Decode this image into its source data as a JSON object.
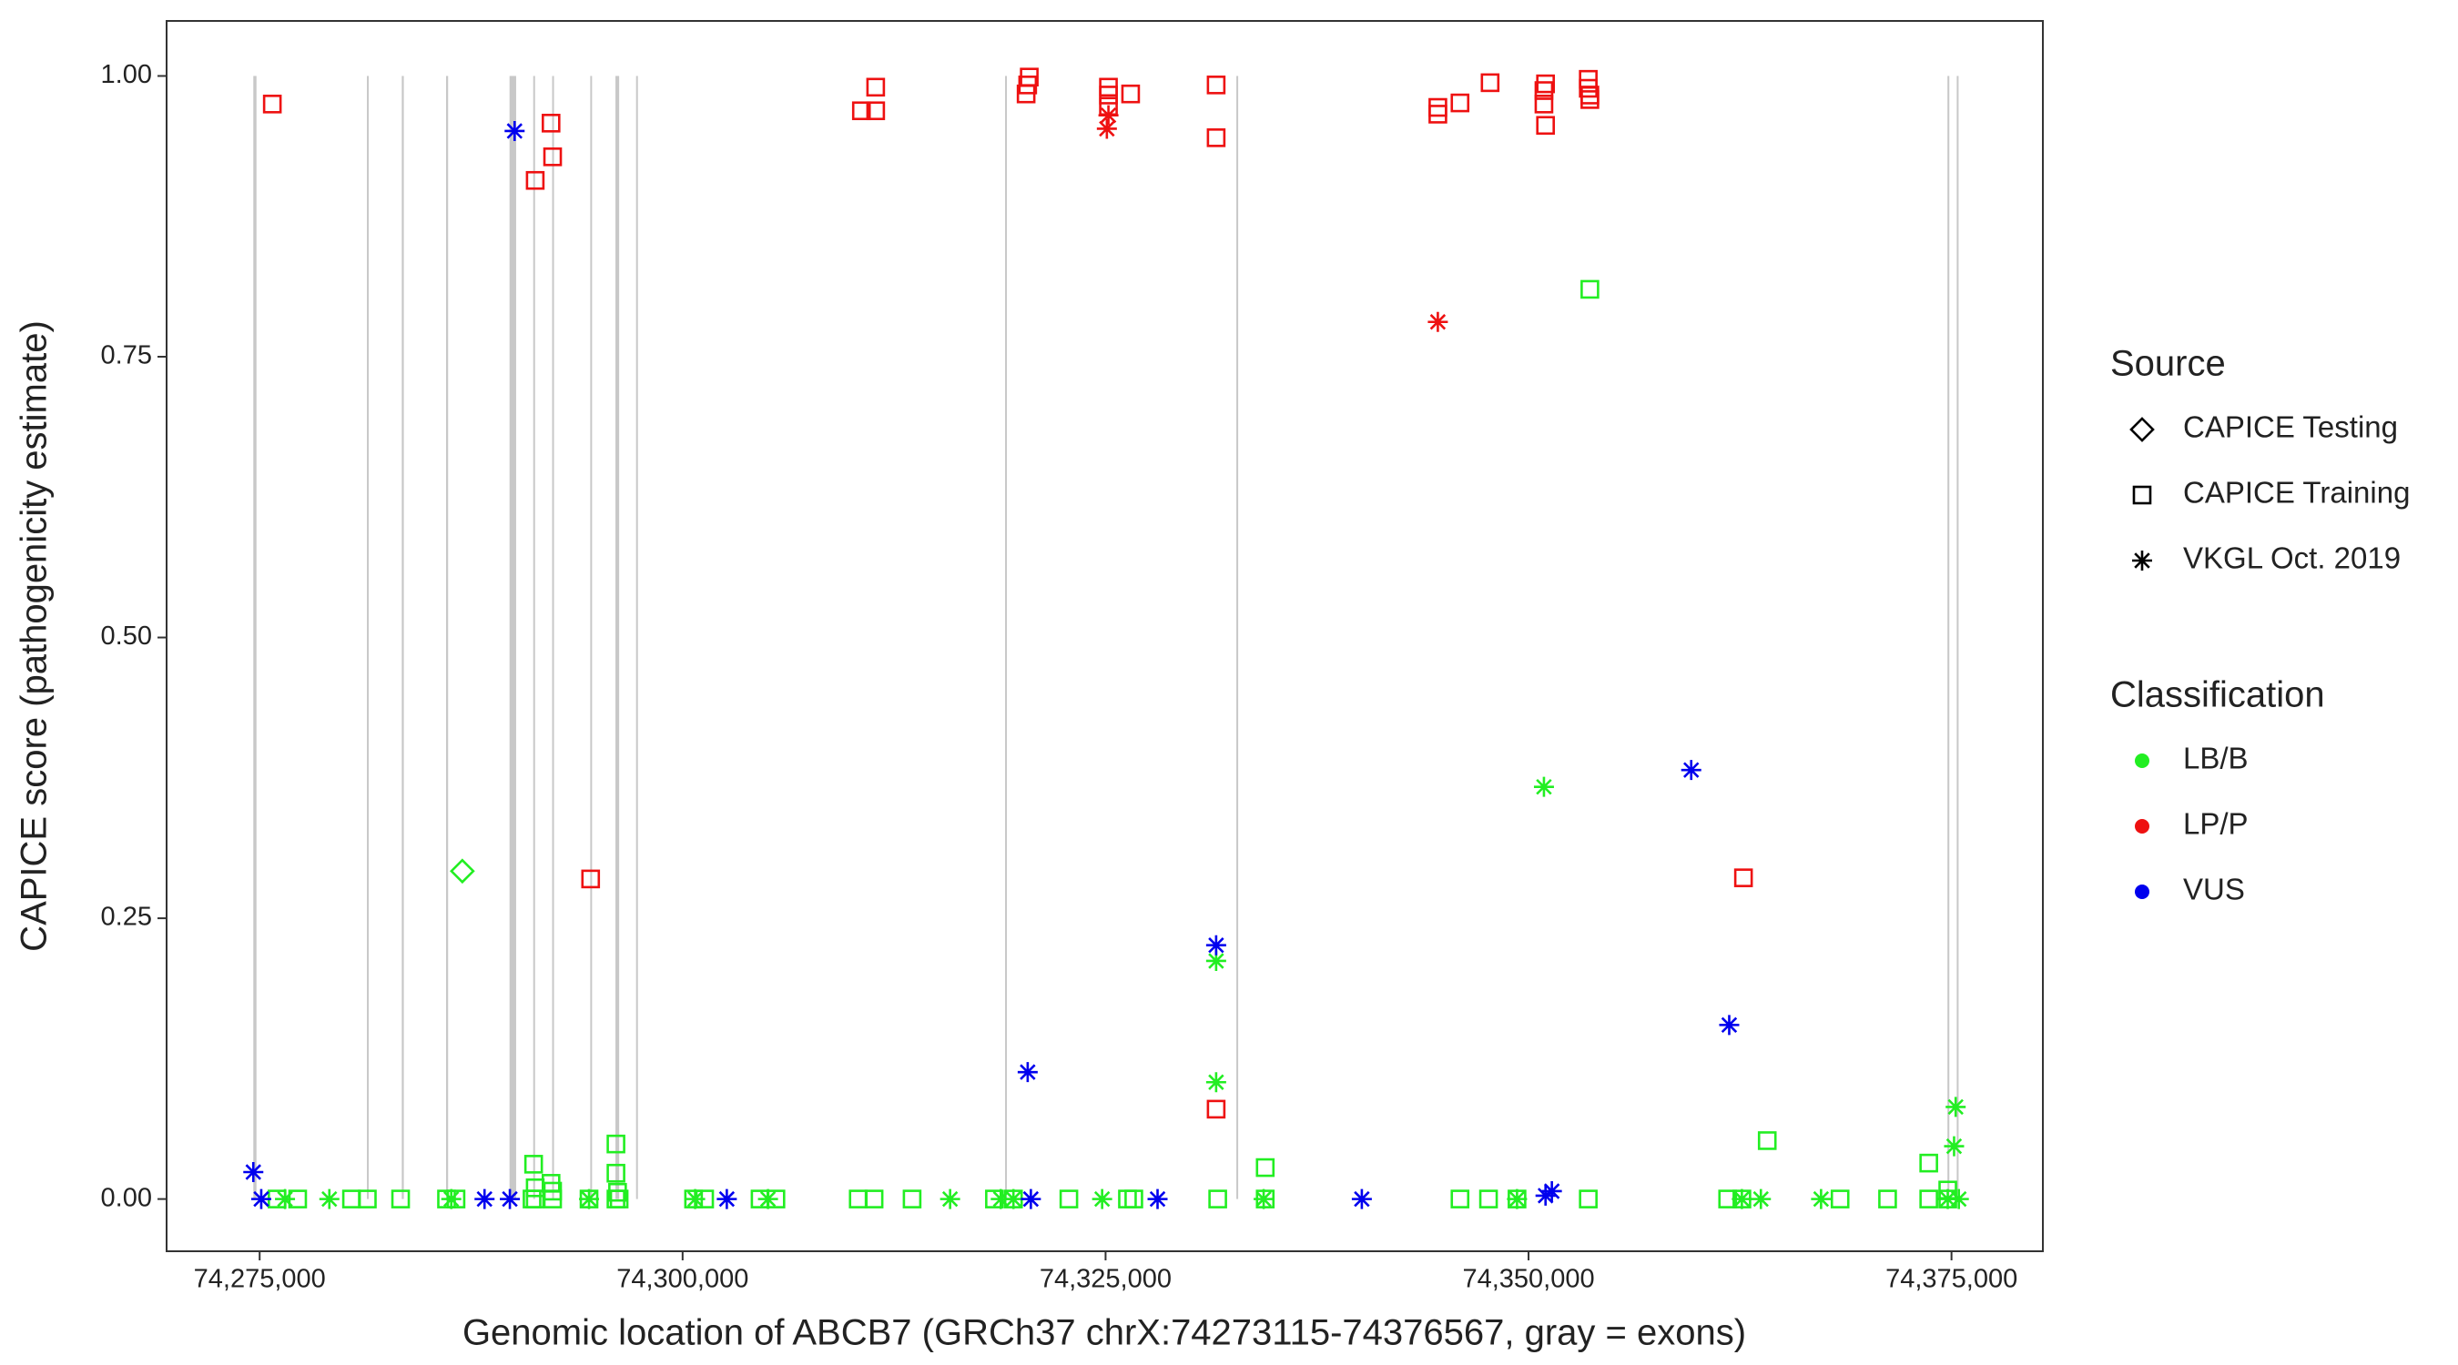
{
  "chart_data": {
    "type": "scatter",
    "xlabel": "Genomic location of ABCB7 (GRCh37 chrX:74273115-74376567, gray = exons)",
    "ylabel": "CAPICE score (pathogenicity estimate)",
    "xlim": [
      74269500,
      74380400
    ],
    "ylim": [
      -0.0465,
      1.049
    ],
    "xticks": [
      {
        "value": 74275000,
        "label": "74,275,000"
      },
      {
        "value": 74300000,
        "label": "74,300,000"
      },
      {
        "value": 74325000,
        "label": "74,325,000"
      },
      {
        "value": 74350000,
        "label": "74,350,000"
      },
      {
        "value": 74375000,
        "label": "74,375,000"
      }
    ],
    "yticks": [
      {
        "value": 0,
        "label": "0.00"
      },
      {
        "value": 0.25,
        "label": "0.25"
      },
      {
        "value": 0.5,
        "label": "0.50"
      },
      {
        "value": 0.75,
        "label": "0.75"
      },
      {
        "value": 1,
        "label": "1.00"
      }
    ],
    "exon_color": "#c8c8c8",
    "exons": [
      [
        74274626,
        74274813
      ],
      [
        74281340,
        74281390
      ],
      [
        74283400,
        74283520
      ],
      [
        74286020,
        74286140
      ],
      [
        74289770,
        74290160
      ],
      [
        74291170,
        74291220
      ],
      [
        74292290,
        74292340
      ],
      [
        74294540,
        74294590
      ],
      [
        74296030,
        74296250
      ],
      [
        74297250,
        74297300
      ],
      [
        74319060,
        74319110
      ],
      [
        74332730,
        74332780
      ],
      [
        74374760,
        74374870
      ],
      [
        74375310,
        74375360
      ]
    ],
    "legends": [
      {
        "title": "Source",
        "entries": [
          {
            "label": "CAPICE Testing",
            "shape": "diamond"
          },
          {
            "label": "CAPICE Training",
            "shape": "square"
          },
          {
            "label": "VKGL Oct. 2019",
            "shape": "star"
          }
        ]
      },
      {
        "title": "Classification",
        "entries": [
          {
            "label": "LB/B",
            "color": "#22ee22"
          },
          {
            "label": "LP/P",
            "color": "#ee1111"
          },
          {
            "label": "VUS",
            "color": "#0000ee"
          }
        ]
      }
    ],
    "series": [
      {
        "source": "CAPICE Training",
        "classification": "LB/B",
        "x": [
          74276030,
          74277247,
          74280429,
          74281365,
          74283331,
          74286045,
          74286607,
          74291100,
          74291287,
          74292316,
          74294469,
          74296060,
          74296248,
          74300647,
          74301302,
          74304578,
          74305514,
          74310381,
          74311317,
          74313564,
          74318431,
          74319554,
          74322830,
          74326293,
          74326668,
          74331628,
          74334436,
          74345949,
          74347634,
          74349319,
          74353531,
          74361768,
          74362610,
          74368413,
          74371221,
          74373655,
          74374778,
          74291193,
          74291287,
          74292223,
          74292316,
          74296060,
          74296060,
          74296154,
          74334436,
          74353624,
          74364108,
          74373655,
          74374778
        ],
        "values": [
          0,
          0,
          0,
          0,
          0,
          0,
          0,
          0,
          0,
          0,
          0,
          0,
          0,
          0,
          0,
          0,
          0,
          0,
          0,
          0,
          0,
          0,
          0,
          0,
          0,
          0,
          0,
          0,
          0,
          0,
          0,
          0,
          0,
          0,
          0,
          0,
          0,
          0.031,
          0.01,
          0.014,
          0.007,
          0.049,
          0.023,
          0.006,
          0.028,
          0.81,
          0.052,
          0.032,
          0.008
        ]
      },
      {
        "source": "VKGL Oct. 2019",
        "classification": "LB/B",
        "x": [
          74276498,
          74279119,
          74286326,
          74294469,
          74300740,
          74305046,
          74315810,
          74318805,
          74319554,
          74324796,
          74334343,
          74349319,
          74350910,
          74331535,
          74331535,
          74362610,
          74363733,
          74367290,
          74374778,
          74375152,
          74375246,
          74375433
        ],
        "values": [
          0,
          0,
          0,
          0,
          0,
          0,
          0,
          0,
          0,
          0,
          0,
          0,
          0.367,
          0.212,
          0.104,
          0,
          0,
          0,
          0,
          0.047,
          0.082,
          0
        ]
      },
      {
        "source": "CAPICE Testing",
        "classification": "LB/B",
        "x": [
          74286981
        ],
        "values": [
          0.292
        ]
      },
      {
        "source": "CAPICE Training",
        "classification": "LP/P",
        "x": [
          74275749,
          74291287,
          74292223,
          74292316,
          74294563,
          74310568,
          74311411,
          74311411,
          74320303,
          74320396,
          74320490,
          74325170,
          74325170,
          74325170,
          74326480,
          74331535,
          74331535,
          74331535,
          74344639,
          74344639,
          74345949,
          74347728,
          74350910,
          74351004,
          74350910,
          74351004,
          74353531,
          74353531,
          74353624,
          74353624,
          74362704
        ],
        "values": [
          0.975,
          0.907,
          0.958,
          0.928,
          0.285,
          0.969,
          0.99,
          0.969,
          0.984,
          0.992,
          0.999,
          0.99,
          0.983,
          0.973,
          0.984,
          0.992,
          0.945,
          0.08,
          0.966,
          0.972,
          0.976,
          0.994,
          0.987,
          0.993,
          0.975,
          0.956,
          0.997,
          0.989,
          0.983,
          0.979,
          0.286
        ]
      },
      {
        "source": "VKGL Oct. 2019",
        "classification": "LP/P",
        "x": [
          74325076,
          74325170,
          74344639
        ],
        "values": [
          0.953,
          0.965,
          0.781
        ]
      },
      {
        "source": "VKGL Oct. 2019",
        "classification": "VUS",
        "x": [
          74274626,
          74275094,
          74288292,
          74289789,
          74290070,
          74302612,
          74320396,
          74320584,
          74328072,
          74331535,
          74340146,
          74351004,
          74351378,
          74359615,
          74361861
        ],
        "values": [
          0.024,
          0,
          0,
          0,
          0.951,
          0,
          0.113,
          0,
          0,
          0.226,
          0,
          0.003,
          0.007,
          0.382,
          0.155
        ]
      }
    ]
  }
}
